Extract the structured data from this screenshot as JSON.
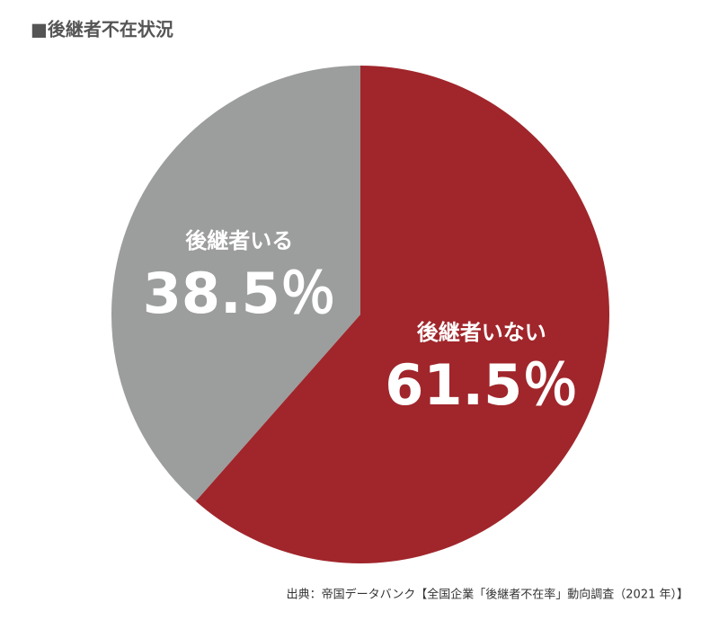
{
  "chart_data": {
    "type": "pie",
    "title": "■後継者不在状況",
    "categories": [
      "後継者いない",
      "後継者いる"
    ],
    "values": [
      61.5,
      38.5
    ],
    "value_labels": [
      "61.5％",
      "38.5％"
    ],
    "colors": [
      "#a0262b",
      "#9c9d9d"
    ],
    "source": "出典：帝国データバンク【全国企業「後継者不在率」動向調査（2021 年）】"
  }
}
